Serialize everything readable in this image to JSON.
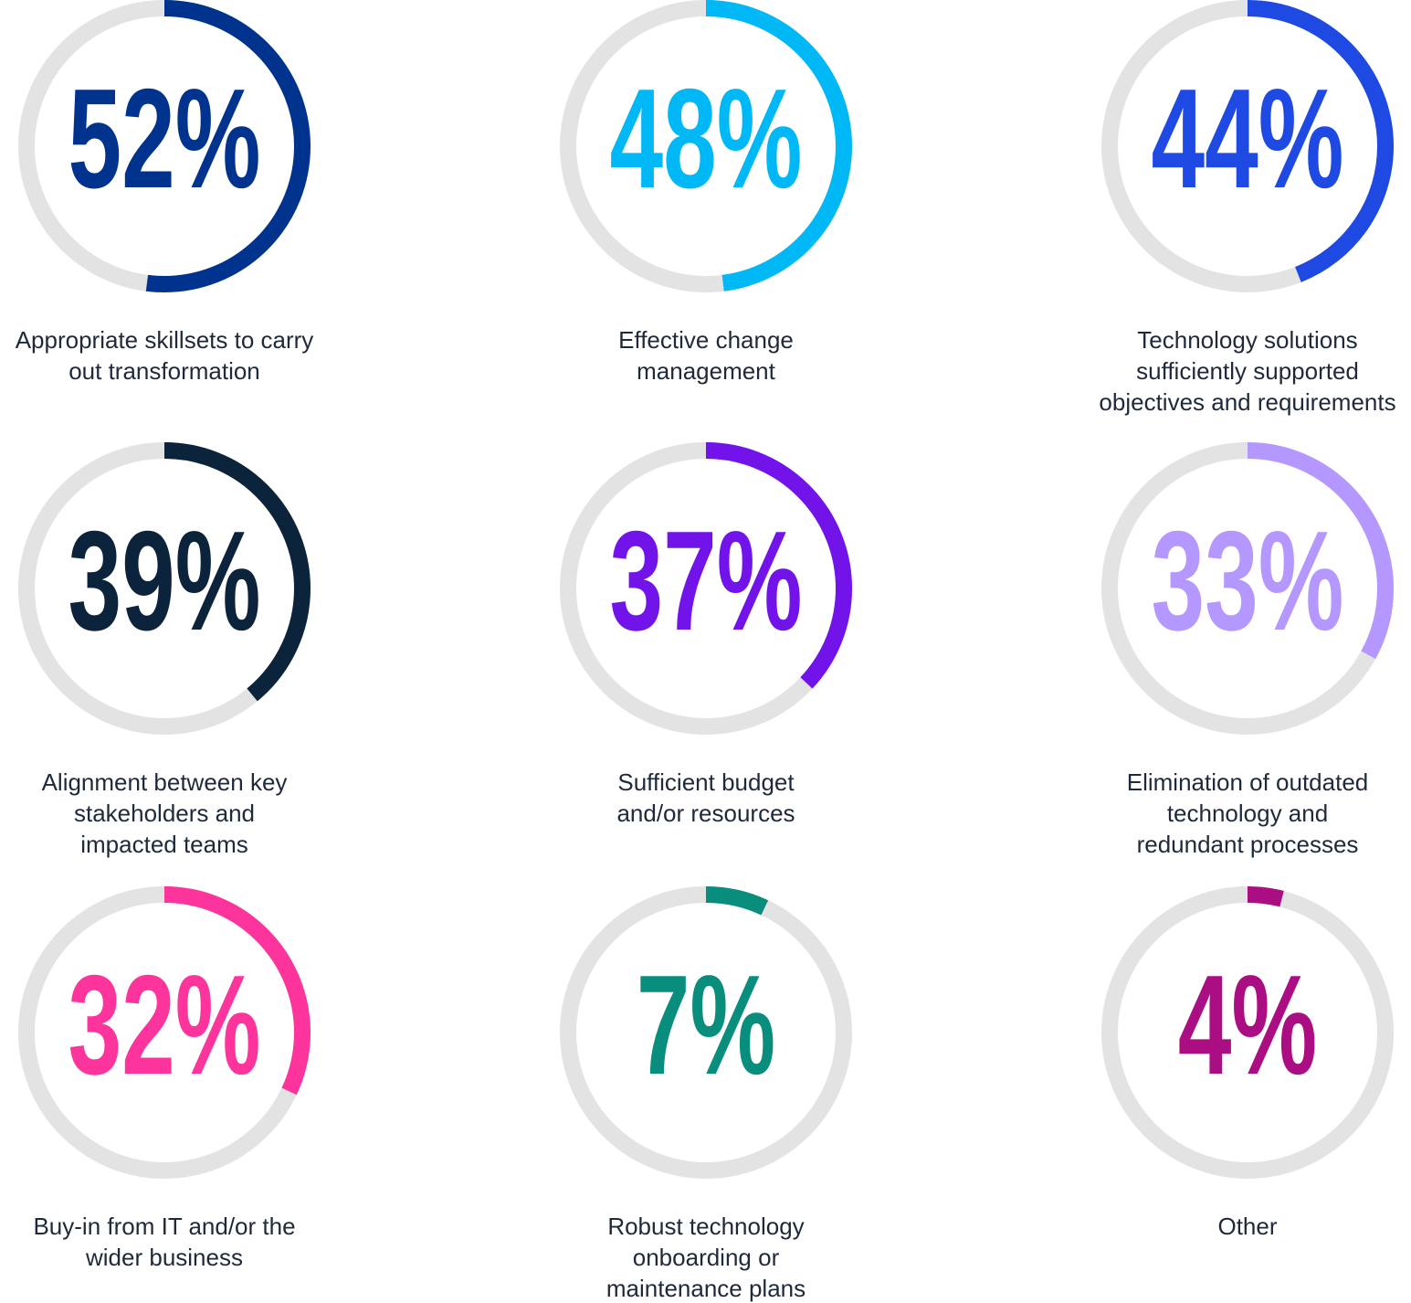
{
  "chart_data": {
    "type": "gauge",
    "categories": [
      "Appropriate skillsets to carry\nout transformation",
      "Effective change\nmanagement",
      "Technology solutions\nsufficiently supported\nobjectives and requirements",
      "Alignment between key\nstakeholders and\nimpacted teams",
      "Sufficient budget\nand/or resources",
      "Elimination of outdated\ntechnology and\nredundant processes",
      "Buy-in from IT and/or the\nwider business",
      "Robust technology\nonboarding or\nmaintenance plans",
      "Other"
    ],
    "values": [
      52,
      48,
      44,
      39,
      37,
      33,
      32,
      7,
      4
    ],
    "value_labels": [
      "52%",
      "48%",
      "44%",
      "39%",
      "37%",
      "33%",
      "32%",
      "7%",
      "4%"
    ],
    "colors": [
      "#00338d",
      "#00b8f5",
      "#1e49e2",
      "#0c233c",
      "#7213ea",
      "#b497ff",
      "#fd349c",
      "#098e7e",
      "#ab0d82"
    ],
    "track_color": "#e3e3e3",
    "max": 100
  }
}
